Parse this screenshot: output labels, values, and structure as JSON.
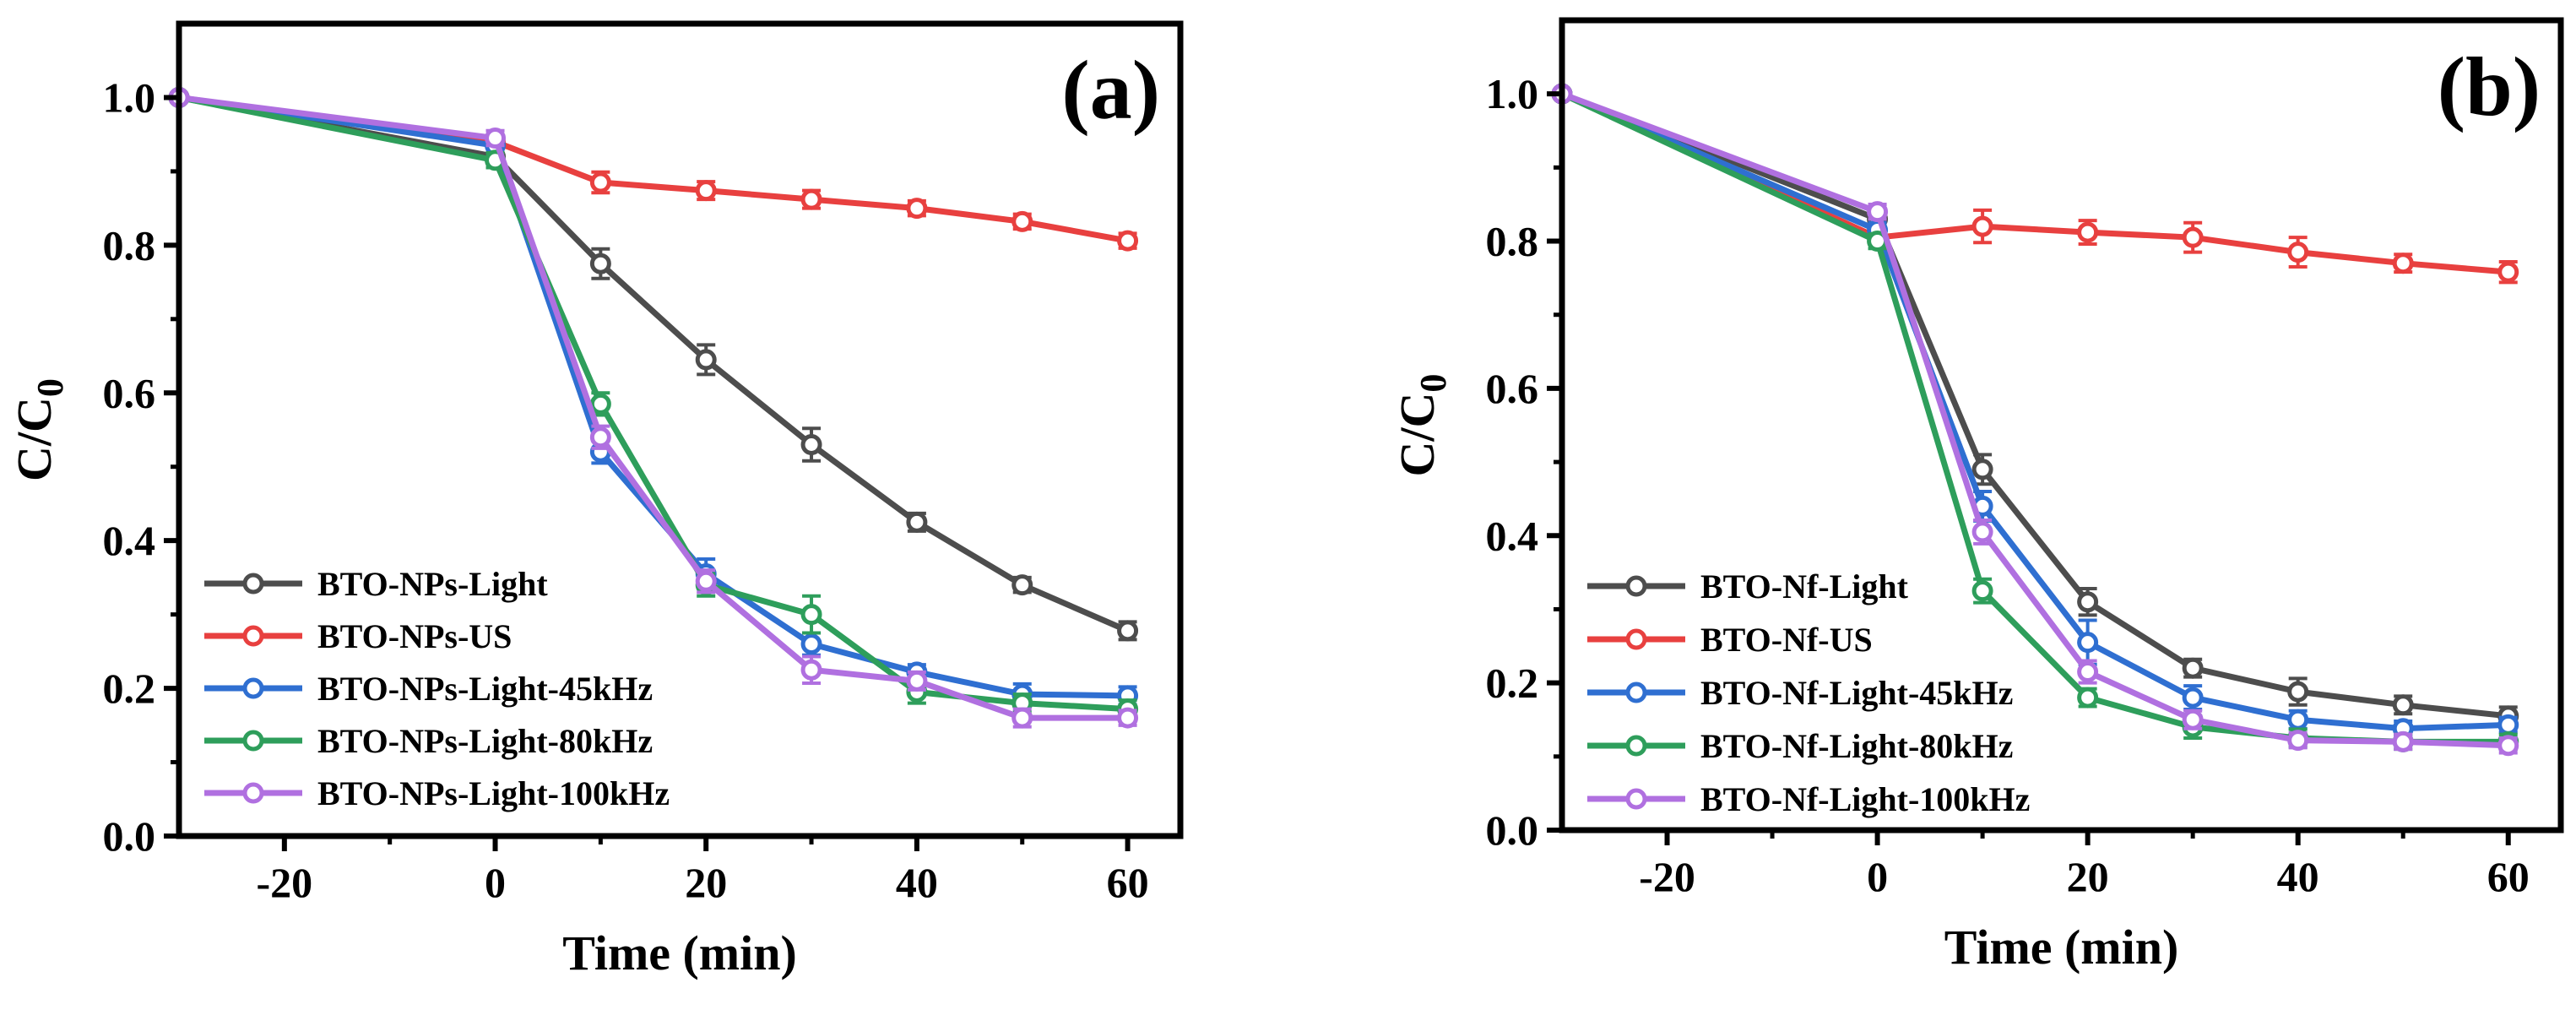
{
  "charts": [
    {
      "panel_label": "(a)",
      "type": "line",
      "xlabel": "Time (min)",
      "ylabel_main": "C/C",
      "ylabel_sub": "0",
      "xlim": [
        -30,
        65
      ],
      "ylim": [
        0.0,
        1.1
      ],
      "x_ticks": [
        -20,
        0,
        20,
        40,
        60
      ],
      "y_ticks": [
        0.0,
        0.2,
        0.4,
        0.6,
        0.8,
        1.0
      ],
      "grid": false,
      "legend_position": "bottom-left",
      "x": [
        -30,
        0,
        10,
        20,
        30,
        40,
        50,
        60
      ],
      "series": [
        {
          "name": "BTO-NPs-Light",
          "color": "#4d4d4d",
          "values": [
            1.0,
            0.92,
            0.775,
            0.645,
            0.53,
            0.425,
            0.34,
            0.278
          ],
          "errors": [
            0,
            0.01,
            0.02,
            0.02,
            0.022,
            0.012,
            0.01,
            0.012
          ]
        },
        {
          "name": "BTO-NPs-US",
          "color": "#e8403f",
          "values": [
            1.0,
            0.94,
            0.885,
            0.874,
            0.862,
            0.85,
            0.832,
            0.806
          ],
          "errors": [
            0,
            0.008,
            0.014,
            0.012,
            0.012,
            0.01,
            0.01,
            0.01
          ]
        },
        {
          "name": "BTO-NPs-Light-45kHz",
          "color": "#2f6fd1",
          "values": [
            1.0,
            0.935,
            0.52,
            0.355,
            0.26,
            0.222,
            0.192,
            0.19
          ],
          "errors": [
            0,
            0.01,
            0.015,
            0.02,
            0.015,
            0.01,
            0.014,
            0.012
          ]
        },
        {
          "name": "BTO-NPs-Light-80kHz",
          "color": "#2e9e5b",
          "values": [
            1.0,
            0.915,
            0.585,
            0.34,
            0.3,
            0.195,
            0.18,
            0.172
          ],
          "errors": [
            0,
            0.01,
            0.015,
            0.015,
            0.025,
            0.015,
            0.012,
            0.012
          ]
        },
        {
          "name": "BTO-NPs-Light-100kHz",
          "color": "#b070e0",
          "values": [
            1.0,
            0.945,
            0.54,
            0.345,
            0.225,
            0.21,
            0.16,
            0.16
          ],
          "errors": [
            0,
            0.01,
            0.015,
            0.015,
            0.018,
            0.012,
            0.012,
            0.01
          ]
        }
      ]
    },
    {
      "panel_label": "(b)",
      "type": "line",
      "xlabel": "Time (min)",
      "ylabel_main": "C/C",
      "ylabel_sub": "0",
      "xlim": [
        -30,
        65
      ],
      "ylim": [
        0.0,
        1.1
      ],
      "x_ticks": [
        -20,
        0,
        20,
        40,
        60
      ],
      "y_ticks": [
        0.0,
        0.2,
        0.4,
        0.6,
        0.8,
        1.0
      ],
      "grid": false,
      "legend_position": "bottom-left",
      "x": [
        -30,
        0,
        10,
        20,
        30,
        40,
        50,
        60
      ],
      "series": [
        {
          "name": "BTO-Nf-Light",
          "color": "#4d4d4d",
          "values": [
            1.0,
            0.83,
            0.49,
            0.31,
            0.22,
            0.188,
            0.17,
            0.155
          ],
          "errors": [
            0,
            0.01,
            0.02,
            0.018,
            0.012,
            0.018,
            0.012,
            0.012
          ]
        },
        {
          "name": "BTO-Nf-US",
          "color": "#e8403f",
          "values": [
            1.0,
            0.805,
            0.82,
            0.812,
            0.805,
            0.785,
            0.77,
            0.758
          ],
          "errors": [
            0,
            0.008,
            0.022,
            0.016,
            0.02,
            0.02,
            0.012,
            0.014
          ]
        },
        {
          "name": "BTO-Nf-Light-45kHz",
          "color": "#2f6fd1",
          "values": [
            1.0,
            0.815,
            0.44,
            0.255,
            0.18,
            0.15,
            0.138,
            0.143
          ],
          "errors": [
            0,
            0.01,
            0.02,
            0.03,
            0.016,
            0.012,
            0.01,
            0.01
          ]
        },
        {
          "name": "BTO-Nf-Light-80kHz",
          "color": "#2e9e5b",
          "values": [
            1.0,
            0.8,
            0.325,
            0.18,
            0.14,
            0.125,
            0.12,
            0.12
          ],
          "errors": [
            0,
            0.01,
            0.016,
            0.012,
            0.015,
            0.012,
            0.01,
            0.01
          ]
        },
        {
          "name": "BTO-Nf-Light-100kHz",
          "color": "#b070e0",
          "values": [
            1.0,
            0.84,
            0.405,
            0.215,
            0.15,
            0.122,
            0.12,
            0.115
          ],
          "errors": [
            0,
            0.01,
            0.016,
            0.015,
            0.012,
            0.01,
            0.01,
            0.01
          ]
        }
      ]
    }
  ]
}
